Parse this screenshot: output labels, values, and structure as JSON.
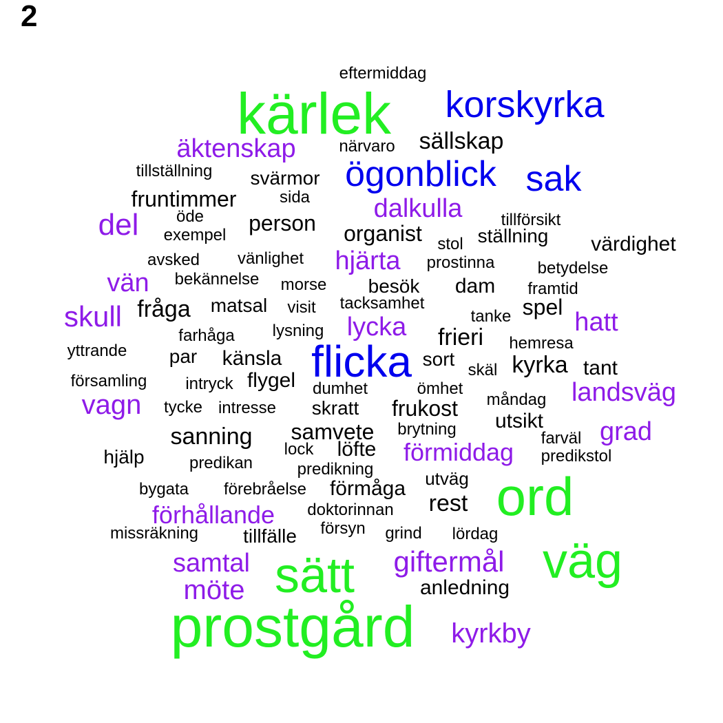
{
  "panel_label": "2",
  "colors": {
    "green": "#22ee22",
    "blue": "#0000ee",
    "purple": "#8e1be8",
    "black": "#000000"
  },
  "words": [
    {
      "text": "eftermiddag",
      "color": "black"
    },
    {
      "text": "kärlek",
      "color": "green"
    },
    {
      "text": "korskyrka",
      "color": "blue"
    },
    {
      "text": "äktenskap",
      "color": "purple"
    },
    {
      "text": "närvaro",
      "color": "black"
    },
    {
      "text": "sällskap",
      "color": "black"
    },
    {
      "text": "tillställning",
      "color": "black"
    },
    {
      "text": "svärmor",
      "color": "black"
    },
    {
      "text": "ögonblick",
      "color": "blue"
    },
    {
      "text": "sak",
      "color": "blue"
    },
    {
      "text": "fruntimmer",
      "color": "black"
    },
    {
      "text": "sida",
      "color": "black"
    },
    {
      "text": "dalkulla",
      "color": "purple"
    },
    {
      "text": "del",
      "color": "purple"
    },
    {
      "text": "öde",
      "color": "black"
    },
    {
      "text": "exempel",
      "color": "black"
    },
    {
      "text": "person",
      "color": "black"
    },
    {
      "text": "organist",
      "color": "black"
    },
    {
      "text": "tillförsikt",
      "color": "black"
    },
    {
      "text": "stol",
      "color": "black"
    },
    {
      "text": "ställning",
      "color": "black"
    },
    {
      "text": "värdighet",
      "color": "black"
    },
    {
      "text": "avsked",
      "color": "black"
    },
    {
      "text": "vänlighet",
      "color": "black"
    },
    {
      "text": "hjärta",
      "color": "purple"
    },
    {
      "text": "prostinna",
      "color": "black"
    },
    {
      "text": "betydelse",
      "color": "black"
    },
    {
      "text": "vän",
      "color": "purple"
    },
    {
      "text": "bekännelse",
      "color": "black"
    },
    {
      "text": "morse",
      "color": "black"
    },
    {
      "text": "besök",
      "color": "black"
    },
    {
      "text": "dam",
      "color": "black"
    },
    {
      "text": "framtid",
      "color": "black"
    },
    {
      "text": "skull",
      "color": "purple"
    },
    {
      "text": "fråga",
      "color": "black"
    },
    {
      "text": "matsal",
      "color": "black"
    },
    {
      "text": "visit",
      "color": "black"
    },
    {
      "text": "tacksamhet",
      "color": "black"
    },
    {
      "text": "spel",
      "color": "black"
    },
    {
      "text": "tanke",
      "color": "black"
    },
    {
      "text": "hatt",
      "color": "purple"
    },
    {
      "text": "lysning",
      "color": "black"
    },
    {
      "text": "lycka",
      "color": "purple"
    },
    {
      "text": "farhåga",
      "color": "black"
    },
    {
      "text": "frieri",
      "color": "black"
    },
    {
      "text": "hemresa",
      "color": "black"
    },
    {
      "text": "yttrande",
      "color": "black"
    },
    {
      "text": "par",
      "color": "black"
    },
    {
      "text": "känsla",
      "color": "black"
    },
    {
      "text": "flicka",
      "color": "blue"
    },
    {
      "text": "sort",
      "color": "black"
    },
    {
      "text": "skäl",
      "color": "black"
    },
    {
      "text": "kyrka",
      "color": "black"
    },
    {
      "text": "tant",
      "color": "black"
    },
    {
      "text": "församling",
      "color": "black"
    },
    {
      "text": "intryck",
      "color": "black"
    },
    {
      "text": "flygel",
      "color": "black"
    },
    {
      "text": "dumhet",
      "color": "black"
    },
    {
      "text": "ömhet",
      "color": "black"
    },
    {
      "text": "landsväg",
      "color": "purple"
    },
    {
      "text": "vagn",
      "color": "purple"
    },
    {
      "text": "tycke",
      "color": "black"
    },
    {
      "text": "intresse",
      "color": "black"
    },
    {
      "text": "skratt",
      "color": "black"
    },
    {
      "text": "frukost",
      "color": "black"
    },
    {
      "text": "måndag",
      "color": "black"
    },
    {
      "text": "utsikt",
      "color": "black"
    },
    {
      "text": "sanning",
      "color": "black"
    },
    {
      "text": "samvete",
      "color": "black"
    },
    {
      "text": "brytning",
      "color": "black"
    },
    {
      "text": "grad",
      "color": "purple"
    },
    {
      "text": "farväl",
      "color": "black"
    },
    {
      "text": "hjälp",
      "color": "black"
    },
    {
      "text": "lock",
      "color": "black"
    },
    {
      "text": "löfte",
      "color": "black"
    },
    {
      "text": "förmiddag",
      "color": "purple"
    },
    {
      "text": "predikstol",
      "color": "black"
    },
    {
      "text": "predikan",
      "color": "black"
    },
    {
      "text": "predikning",
      "color": "black"
    },
    {
      "text": "utväg",
      "color": "black"
    },
    {
      "text": "ord",
      "color": "green"
    },
    {
      "text": "bygata",
      "color": "black"
    },
    {
      "text": "förebråelse",
      "color": "black"
    },
    {
      "text": "förmåga",
      "color": "black"
    },
    {
      "text": "rest",
      "color": "black"
    },
    {
      "text": "förhållande",
      "color": "purple"
    },
    {
      "text": "doktorinnan",
      "color": "black"
    },
    {
      "text": "missräkning",
      "color": "black"
    },
    {
      "text": "tillfälle",
      "color": "black"
    },
    {
      "text": "försyn",
      "color": "black"
    },
    {
      "text": "grind",
      "color": "black"
    },
    {
      "text": "lördag",
      "color": "black"
    },
    {
      "text": "samtal",
      "color": "purple"
    },
    {
      "text": "sätt",
      "color": "green"
    },
    {
      "text": "giftermål",
      "color": "purple"
    },
    {
      "text": "väg",
      "color": "green"
    },
    {
      "text": "möte",
      "color": "purple"
    },
    {
      "text": "anledning",
      "color": "black"
    },
    {
      "text": "prostgård",
      "color": "green"
    },
    {
      "text": "kyrkby",
      "color": "purple"
    }
  ]
}
